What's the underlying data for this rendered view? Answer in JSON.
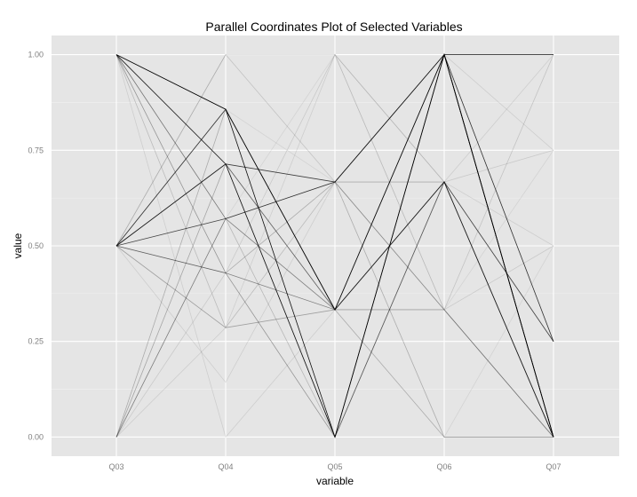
{
  "chart_data": {
    "type": "line",
    "title": "Parallel Coordinates Plot of Selected Variables",
    "xlabel": "variable",
    "ylabel": "value",
    "categories": [
      "Q03",
      "Q04",
      "Q05",
      "Q06",
      "Q07"
    ],
    "y_ticks": [
      "0.00",
      "0.25",
      "0.50",
      "0.75",
      "1.00"
    ],
    "y_tick_values": [
      0,
      0.25,
      0.5,
      0.75,
      1.0
    ],
    "ylim": [
      -0.05,
      1.05
    ],
    "grid": true,
    "series": [
      {
        "values": [
          1.0,
          0.857,
          0.333,
          1.0,
          1.0
        ],
        "opacity": 0.8
      },
      {
        "values": [
          1.0,
          0.714,
          0.0,
          1.0,
          0.0
        ],
        "opacity": 0.9
      },
      {
        "values": [
          1.0,
          0.857,
          0.0,
          1.0,
          0.0
        ],
        "opacity": 0.95
      },
      {
        "values": [
          0.5,
          0.857,
          0.333,
          1.0,
          0.25
        ],
        "opacity": 0.8
      },
      {
        "values": [
          0.5,
          0.714,
          0.667,
          1.0,
          0.0
        ],
        "opacity": 0.75
      },
      {
        "values": [
          0.5,
          0.571,
          0.667,
          1.0,
          0.0
        ],
        "opacity": 0.7
      },
      {
        "values": [
          0.5,
          0.714,
          0.333,
          0.667,
          0.0
        ],
        "opacity": 0.6
      },
      {
        "values": [
          1.0,
          0.571,
          0.333,
          0.667,
          0.25
        ],
        "opacity": 0.45
      },
      {
        "values": [
          0.5,
          0.429,
          0.333,
          0.667,
          0.0
        ],
        "opacity": 0.45
      },
      {
        "values": [
          1.0,
          0.429,
          0.0,
          0.667,
          0.0
        ],
        "opacity": 0.35
      },
      {
        "values": [
          0.0,
          0.571,
          0.667,
          0.333,
          0.0
        ],
        "opacity": 0.3
      },
      {
        "values": [
          0.0,
          0.714,
          0.0,
          0.667,
          0.25
        ],
        "opacity": 0.28
      },
      {
        "values": [
          0.0,
          0.857,
          0.333,
          0.0,
          0.0
        ],
        "opacity": 0.25
      },
      {
        "values": [
          0.5,
          0.286,
          0.333,
          0.333,
          0.0
        ],
        "opacity": 0.3
      },
      {
        "values": [
          0.5,
          0.429,
          0.667,
          0.667,
          0.25
        ],
        "opacity": 0.25
      },
      {
        "values": [
          0.0,
          0.571,
          0.0,
          0.667,
          0.0
        ],
        "opacity": 0.2
      },
      {
        "values": [
          1.0,
          0.286,
          0.667,
          0.0,
          0.0
        ],
        "opacity": 0.18
      },
      {
        "values": [
          0.5,
          1.0,
          0.667,
          0.333,
          1.0
        ],
        "opacity": 0.15
      },
      {
        "values": [
          0.5,
          1.0,
          1.0,
          0.667,
          0.75
        ],
        "opacity": 0.12
      },
      {
        "values": [
          0.0,
          0.429,
          1.0,
          0.333,
          0.5
        ],
        "opacity": 0.12
      },
      {
        "values": [
          1.0,
          0.0,
          0.333,
          0.667,
          1.0
        ],
        "opacity": 0.1
      },
      {
        "values": [
          0.5,
          0.143,
          0.667,
          1.0,
          0.75
        ],
        "opacity": 0.1
      },
      {
        "values": [
          0.0,
          0.286,
          1.0,
          0.667,
          0.5
        ],
        "opacity": 0.1
      },
      {
        "values": [
          1.0,
          0.571,
          1.0,
          0.333,
          0.75
        ],
        "opacity": 0.08
      },
      {
        "values": [
          0.5,
          0.857,
          0.667,
          0.0,
          0.5
        ],
        "opacity": 0.08
      }
    ]
  }
}
